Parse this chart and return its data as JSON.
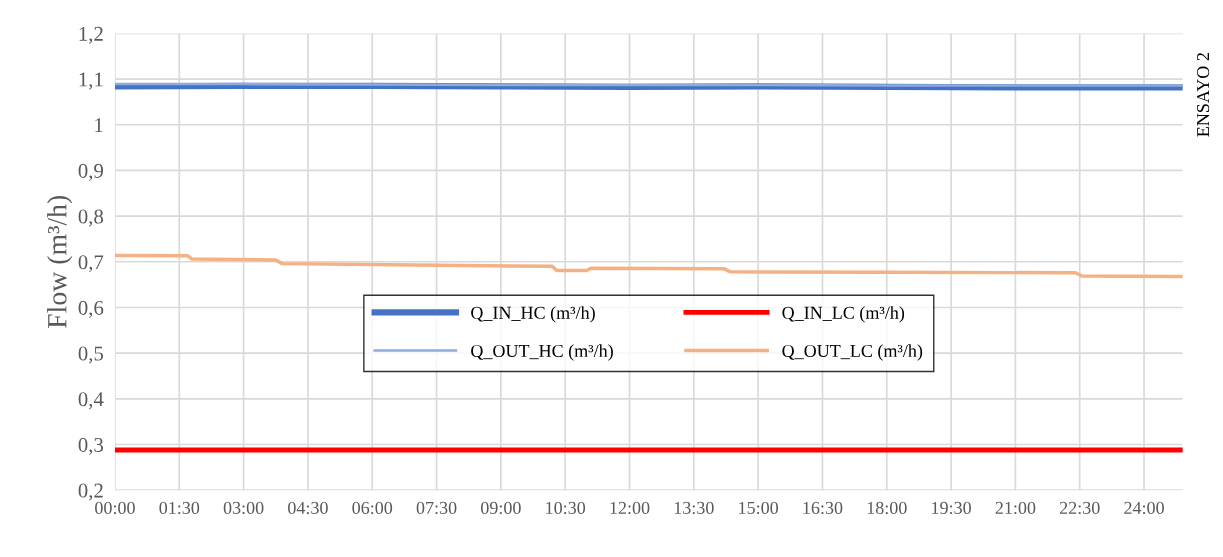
{
  "chart_data": {
    "type": "line",
    "ylabel": "Flow (m³/h)",
    "annotations": [
      "ENSAYO 2"
    ],
    "xlim": [
      0,
      24.9
    ],
    "ylim": [
      0.2,
      1.2
    ],
    "xticks": [
      {
        "value": 0,
        "label": "00:00"
      },
      {
        "value": 1.5,
        "label": "01:30"
      },
      {
        "value": 3,
        "label": "03:00"
      },
      {
        "value": 4.5,
        "label": "04:30"
      },
      {
        "value": 6,
        "label": "06:00"
      },
      {
        "value": 7.5,
        "label": "07:30"
      },
      {
        "value": 9,
        "label": "09:00"
      },
      {
        "value": 10.5,
        "label": "10:30"
      },
      {
        "value": 12,
        "label": "12:00"
      },
      {
        "value": 13.5,
        "label": "13:30"
      },
      {
        "value": 15,
        "label": "15:00"
      },
      {
        "value": 16.5,
        "label": "16:30"
      },
      {
        "value": 18,
        "label": "18:00"
      },
      {
        "value": 19.5,
        "label": "19:30"
      },
      {
        "value": 21,
        "label": "21:00"
      },
      {
        "value": 22.5,
        "label": "22:30"
      },
      {
        "value": 24,
        "label": "24:00"
      }
    ],
    "yticks": [
      {
        "value": 0.2,
        "label": "0,2"
      },
      {
        "value": 0.3,
        "label": "0,3"
      },
      {
        "value": 0.4,
        "label": "0,4"
      },
      {
        "value": 0.5,
        "label": "0,5"
      },
      {
        "value": 0.6,
        "label": "0,6"
      },
      {
        "value": 0.7,
        "label": "0,7"
      },
      {
        "value": 0.8,
        "label": "0,8"
      },
      {
        "value": 0.9,
        "label": "0,9"
      },
      {
        "value": 1,
        "label": "1"
      },
      {
        "value": 1.1,
        "label": "1,1"
      },
      {
        "value": 1.2,
        "label": "1,2"
      }
    ],
    "grid": true,
    "legend": "bottom",
    "marker": "none",
    "line_style": "solid",
    "series": [
      {
        "name": "Q_IN_HC (m³/h)",
        "color": "#4472c4",
        "x": [
          0,
          3,
          6,
          9,
          12,
          15,
          18,
          21,
          24,
          24.9
        ],
        "values": [
          1.084,
          1.085,
          1.085,
          1.084,
          1.083,
          1.084,
          1.083,
          1.082,
          1.082,
          1.082
        ]
      },
      {
        "name": "Q_OUT_HC (m³/h)",
        "color": "#8faadc",
        "x": [
          0,
          3,
          6,
          9,
          12,
          15,
          18,
          21,
          24,
          24.9
        ],
        "values": [
          1.089,
          1.089,
          1.088,
          1.087,
          1.087,
          1.087,
          1.086,
          1.086,
          1.086,
          1.086
        ]
      },
      {
        "name": "Q_IN_LC (m³/h)",
        "color": "#ff0000",
        "x": [
          0,
          6,
          12,
          18,
          24.9
        ],
        "values": [
          0.288,
          0.288,
          0.288,
          0.288,
          0.288
        ]
      },
      {
        "name": "Q_OUT_LC (m³/h)",
        "color": "#f4b183",
        "x": [
          0,
          1.7,
          1.8,
          3.75,
          3.9,
          7,
          10.2,
          10.3,
          11.0,
          11.1,
          14.2,
          14.35,
          18,
          22.4,
          22.55,
          24.9
        ],
        "values": [
          0.714,
          0.713,
          0.706,
          0.704,
          0.696,
          0.693,
          0.69,
          0.681,
          0.681,
          0.686,
          0.685,
          0.678,
          0.677,
          0.676,
          0.669,
          0.668
        ]
      }
    ]
  }
}
